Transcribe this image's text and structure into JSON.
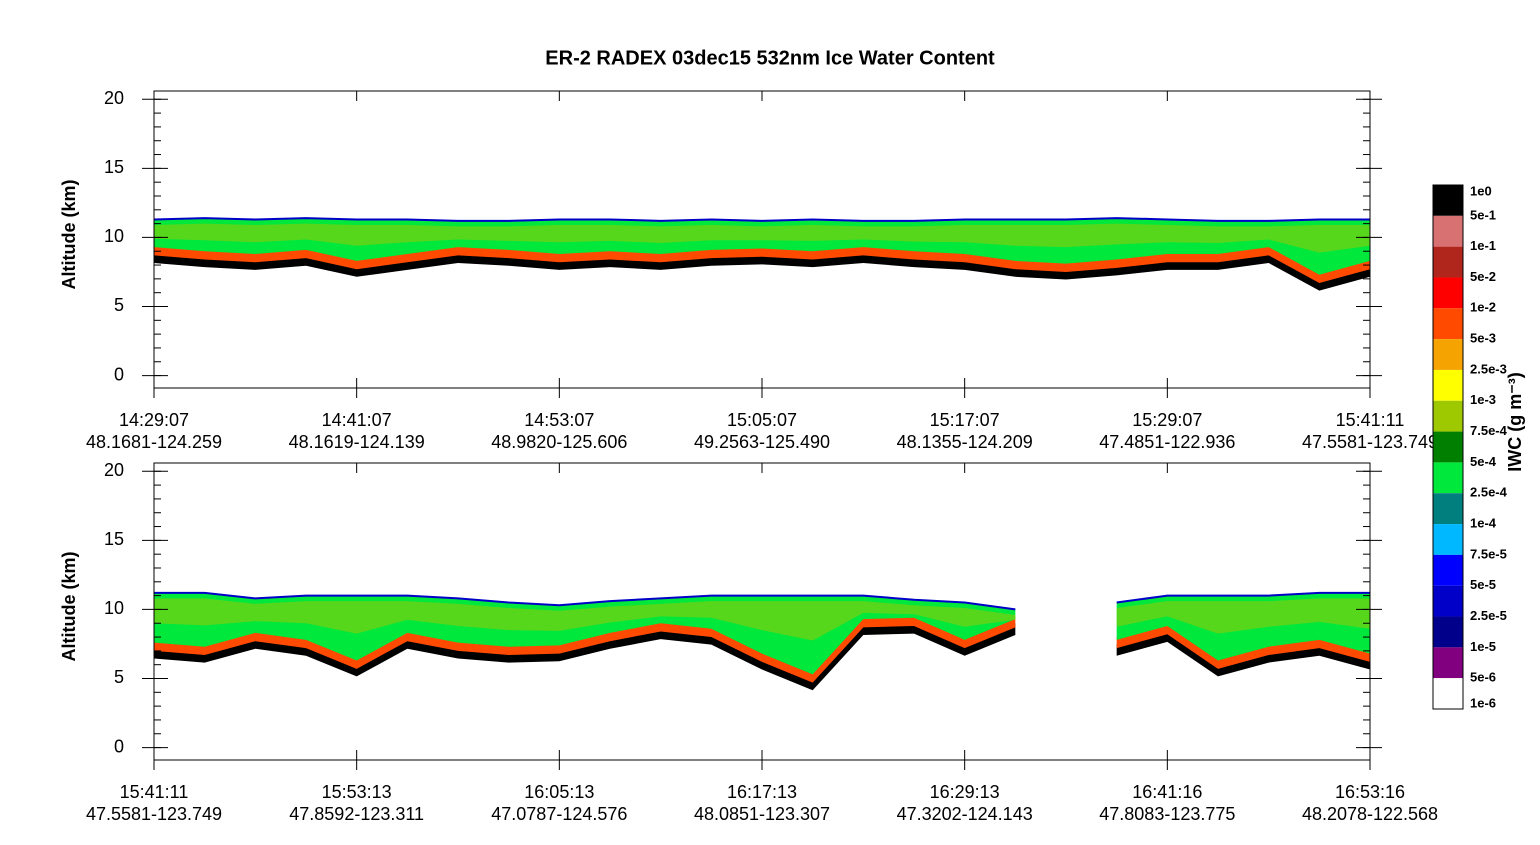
{
  "title": "ER-2  RADEX  03dec15  532nm Ice Water Content",
  "colorbar": {
    "label": "IWC (g m⁻³)",
    "levels": [
      {
        "value": 1,
        "label": "1e0"
      },
      {
        "value": 0.5,
        "label": "5e-1"
      },
      {
        "value": 0.1,
        "label": "1e-1"
      },
      {
        "value": 0.05,
        "label": "5e-2"
      },
      {
        "value": 0.01,
        "label": "1e-2"
      },
      {
        "value": 0.005,
        "label": "5e-3"
      },
      {
        "value": 0.0025,
        "label": "2.5e-3"
      },
      {
        "value": 0.001,
        "label": "1e-3"
      },
      {
        "value": 0.00075,
        "label": "7.5e-4"
      },
      {
        "value": 0.0005,
        "label": "5e-4"
      },
      {
        "value": 0.00025,
        "label": "2.5e-4"
      },
      {
        "value": 0.0001,
        "label": "1e-4"
      },
      {
        "value": 7.5e-05,
        "label": "7.5e-5"
      },
      {
        "value": 5e-05,
        "label": "5e-5"
      },
      {
        "value": 2.5e-05,
        "label": "2.5e-5"
      },
      {
        "value": 1e-05,
        "label": "1e-5"
      },
      {
        "value": 5e-06,
        "label": "5e-6"
      },
      {
        "value": 1e-06,
        "label": "1e-6"
      }
    ],
    "colors": [
      "#000000",
      "#d87272",
      "#b0251c",
      "#ff0000",
      "#ff4a00",
      "#f5a300",
      "#ffff00",
      "#9ec800",
      "#007f00",
      "#00e83c",
      "#007f7f",
      "#00b8ff",
      "#0000ff",
      "#0000c8",
      "#00008b",
      "#800080",
      "#ffffff"
    ]
  },
  "chart_data": [
    {
      "type": "curtain",
      "ylabel": "Altitude (km)",
      "ylim": [
        -0.9,
        20.6
      ],
      "yticks": [
        0,
        5,
        10,
        15,
        20
      ],
      "xticks": [
        {
          "time": "14:29:07",
          "position": "48.1681-124.259"
        },
        {
          "time": "14:41:07",
          "position": "48.1619-124.139"
        },
        {
          "time": "14:53:07",
          "position": "48.9820-125.606"
        },
        {
          "time": "15:05:07",
          "position": "49.2563-125.490"
        },
        {
          "time": "15:17:07",
          "position": "48.1355-124.209"
        },
        {
          "time": "15:29:07",
          "position": "47.4851-122.936"
        },
        {
          "time": "15:41:11",
          "position": "47.5581-123.749"
        }
      ],
      "cloud_top": [
        11.3,
        11.4,
        11.3,
        11.4,
        11.3,
        11.3,
        11.2,
        11.2,
        11.3,
        11.3,
        11.2,
        11.3,
        11.2,
        11.3,
        11.2,
        11.2,
        11.3,
        11.3,
        11.3,
        11.4,
        11.3,
        11.2,
        11.2,
        11.3,
        11.3
      ],
      "cloud_base": [
        8.5,
        8.2,
        8.0,
        8.3,
        7.5,
        8.0,
        8.5,
        8.3,
        8.0,
        8.2,
        8.0,
        8.3,
        8.4,
        8.2,
        8.5,
        8.2,
        8.0,
        7.5,
        7.3,
        7.6,
        8.0,
        8.0,
        8.5,
        6.5,
        7.5
      ]
    },
    {
      "type": "curtain",
      "ylabel": "Altitude (km)",
      "ylim": [
        -0.9,
        20.6
      ],
      "yticks": [
        0,
        5,
        10,
        15,
        20
      ],
      "xticks": [
        {
          "time": "15:41:11",
          "position": "47.5581-123.749"
        },
        {
          "time": "15:53:13",
          "position": "47.8592-123.311"
        },
        {
          "time": "16:05:13",
          "position": "47.0787-124.576"
        },
        {
          "time": "16:17:13",
          "position": "48.0851-123.307"
        },
        {
          "time": "16:29:13",
          "position": "47.3202-124.143"
        },
        {
          "time": "16:41:16",
          "position": "47.8083-123.775"
        },
        {
          "time": "16:53:16",
          "position": "48.2078-122.568"
        }
      ],
      "cloud_top": [
        11.2,
        11.2,
        10.8,
        11.0,
        11.0,
        11.0,
        10.8,
        10.5,
        10.3,
        10.6,
        10.8,
        11.0,
        11.0,
        11.0,
        11.0,
        10.7,
        10.5,
        10.0,
        null,
        10.5,
        11.0,
        11.0,
        11.0,
        11.2,
        11.2
      ],
      "cloud_base": [
        6.8,
        6.5,
        7.5,
        7.0,
        5.5,
        7.5,
        6.8,
        6.5,
        6.6,
        7.5,
        8.2,
        7.8,
        6.0,
        4.5,
        8.5,
        8.6,
        7.0,
        8.5,
        null,
        7.0,
        8.0,
        5.5,
        6.5,
        7.0,
        6.0
      ]
    }
  ]
}
